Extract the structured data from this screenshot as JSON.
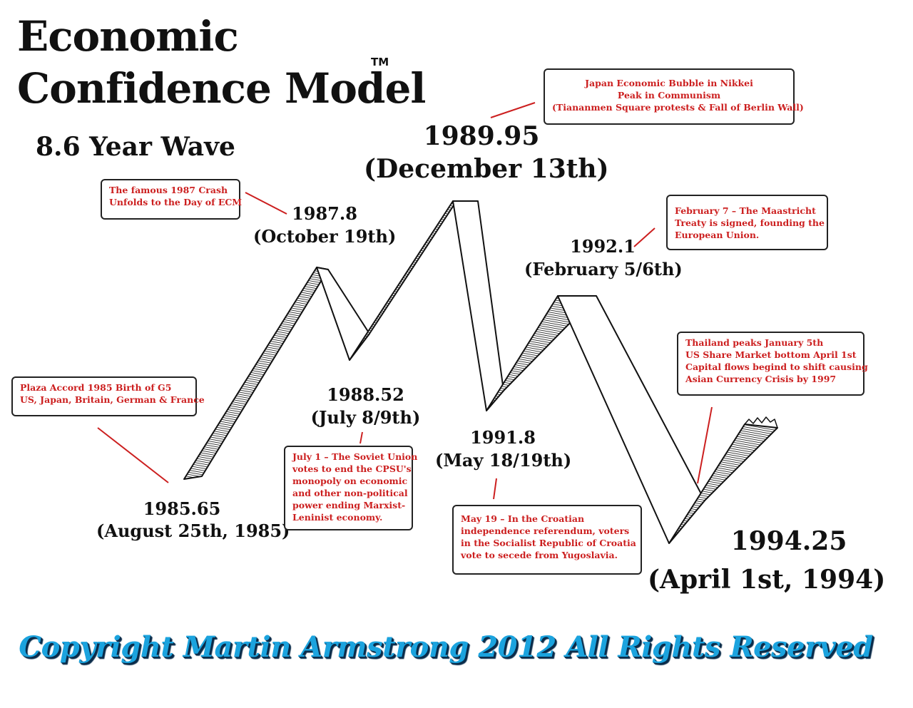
{
  "title": {
    "line1": "Economic",
    "line2": "Confidence Model",
    "trademark": "TM"
  },
  "subtitle": "8.6 Year Wave",
  "points": [
    {
      "year": "1985.65",
      "date": "(August 25th, 1985)"
    },
    {
      "year": "1987.8",
      "date": "(October 19th)"
    },
    {
      "year": "1988.52",
      "date": "(July 8/9th)"
    },
    {
      "year": "1989.95",
      "date": "(December 13th)"
    },
    {
      "year": "1991.8",
      "date": "(May 18/19th)"
    },
    {
      "year": "1992.1",
      "date": "(February 5/6th)"
    },
    {
      "year": "1994.25",
      "date": "(April 1st, 1994)"
    }
  ],
  "notes": {
    "plaza": [
      "Plaza Accord 1985 Birth of G5",
      "US, Japan, Britain, German & France"
    ],
    "crash": [
      "The famous 1987 Crash",
      "Unfolds to the Day of ECM"
    ],
    "soviet": [
      "July 1 – The Soviet Union",
      "votes to end the CPSU's",
      "monopoly on economic",
      "and other non-political",
      "power ending Marxist-",
      "Leninist economy."
    ],
    "japan": [
      "Japan Economic Bubble in Nikkei",
      "Peak in Communism",
      "(Tiananmen Square protests & Fall of Berlin Wall)"
    ],
    "croatia": [
      "May 19 – In the Croatian",
      "independence referendum, voters",
      "in the Socialist Republic of Croatia",
      "vote to secede from Yugoslavia."
    ],
    "maastricht": [
      "February 7 – The Maastricht",
      "Treaty is signed, founding the",
      "European Union."
    ],
    "thailand": [
      "Thailand peaks January 5th",
      "US Share Market bottom April 1st",
      "Capital flows begind to shift causing",
      "Asian Currency Crisis by 1997"
    ]
  },
  "colors": {
    "note_text": "#cc1f1f",
    "leader_line": "#cc1f1f",
    "copyright": "#1ba3de"
  },
  "copyright": "Copyright Martin Armstrong 2012 All Rights Reserved"
}
